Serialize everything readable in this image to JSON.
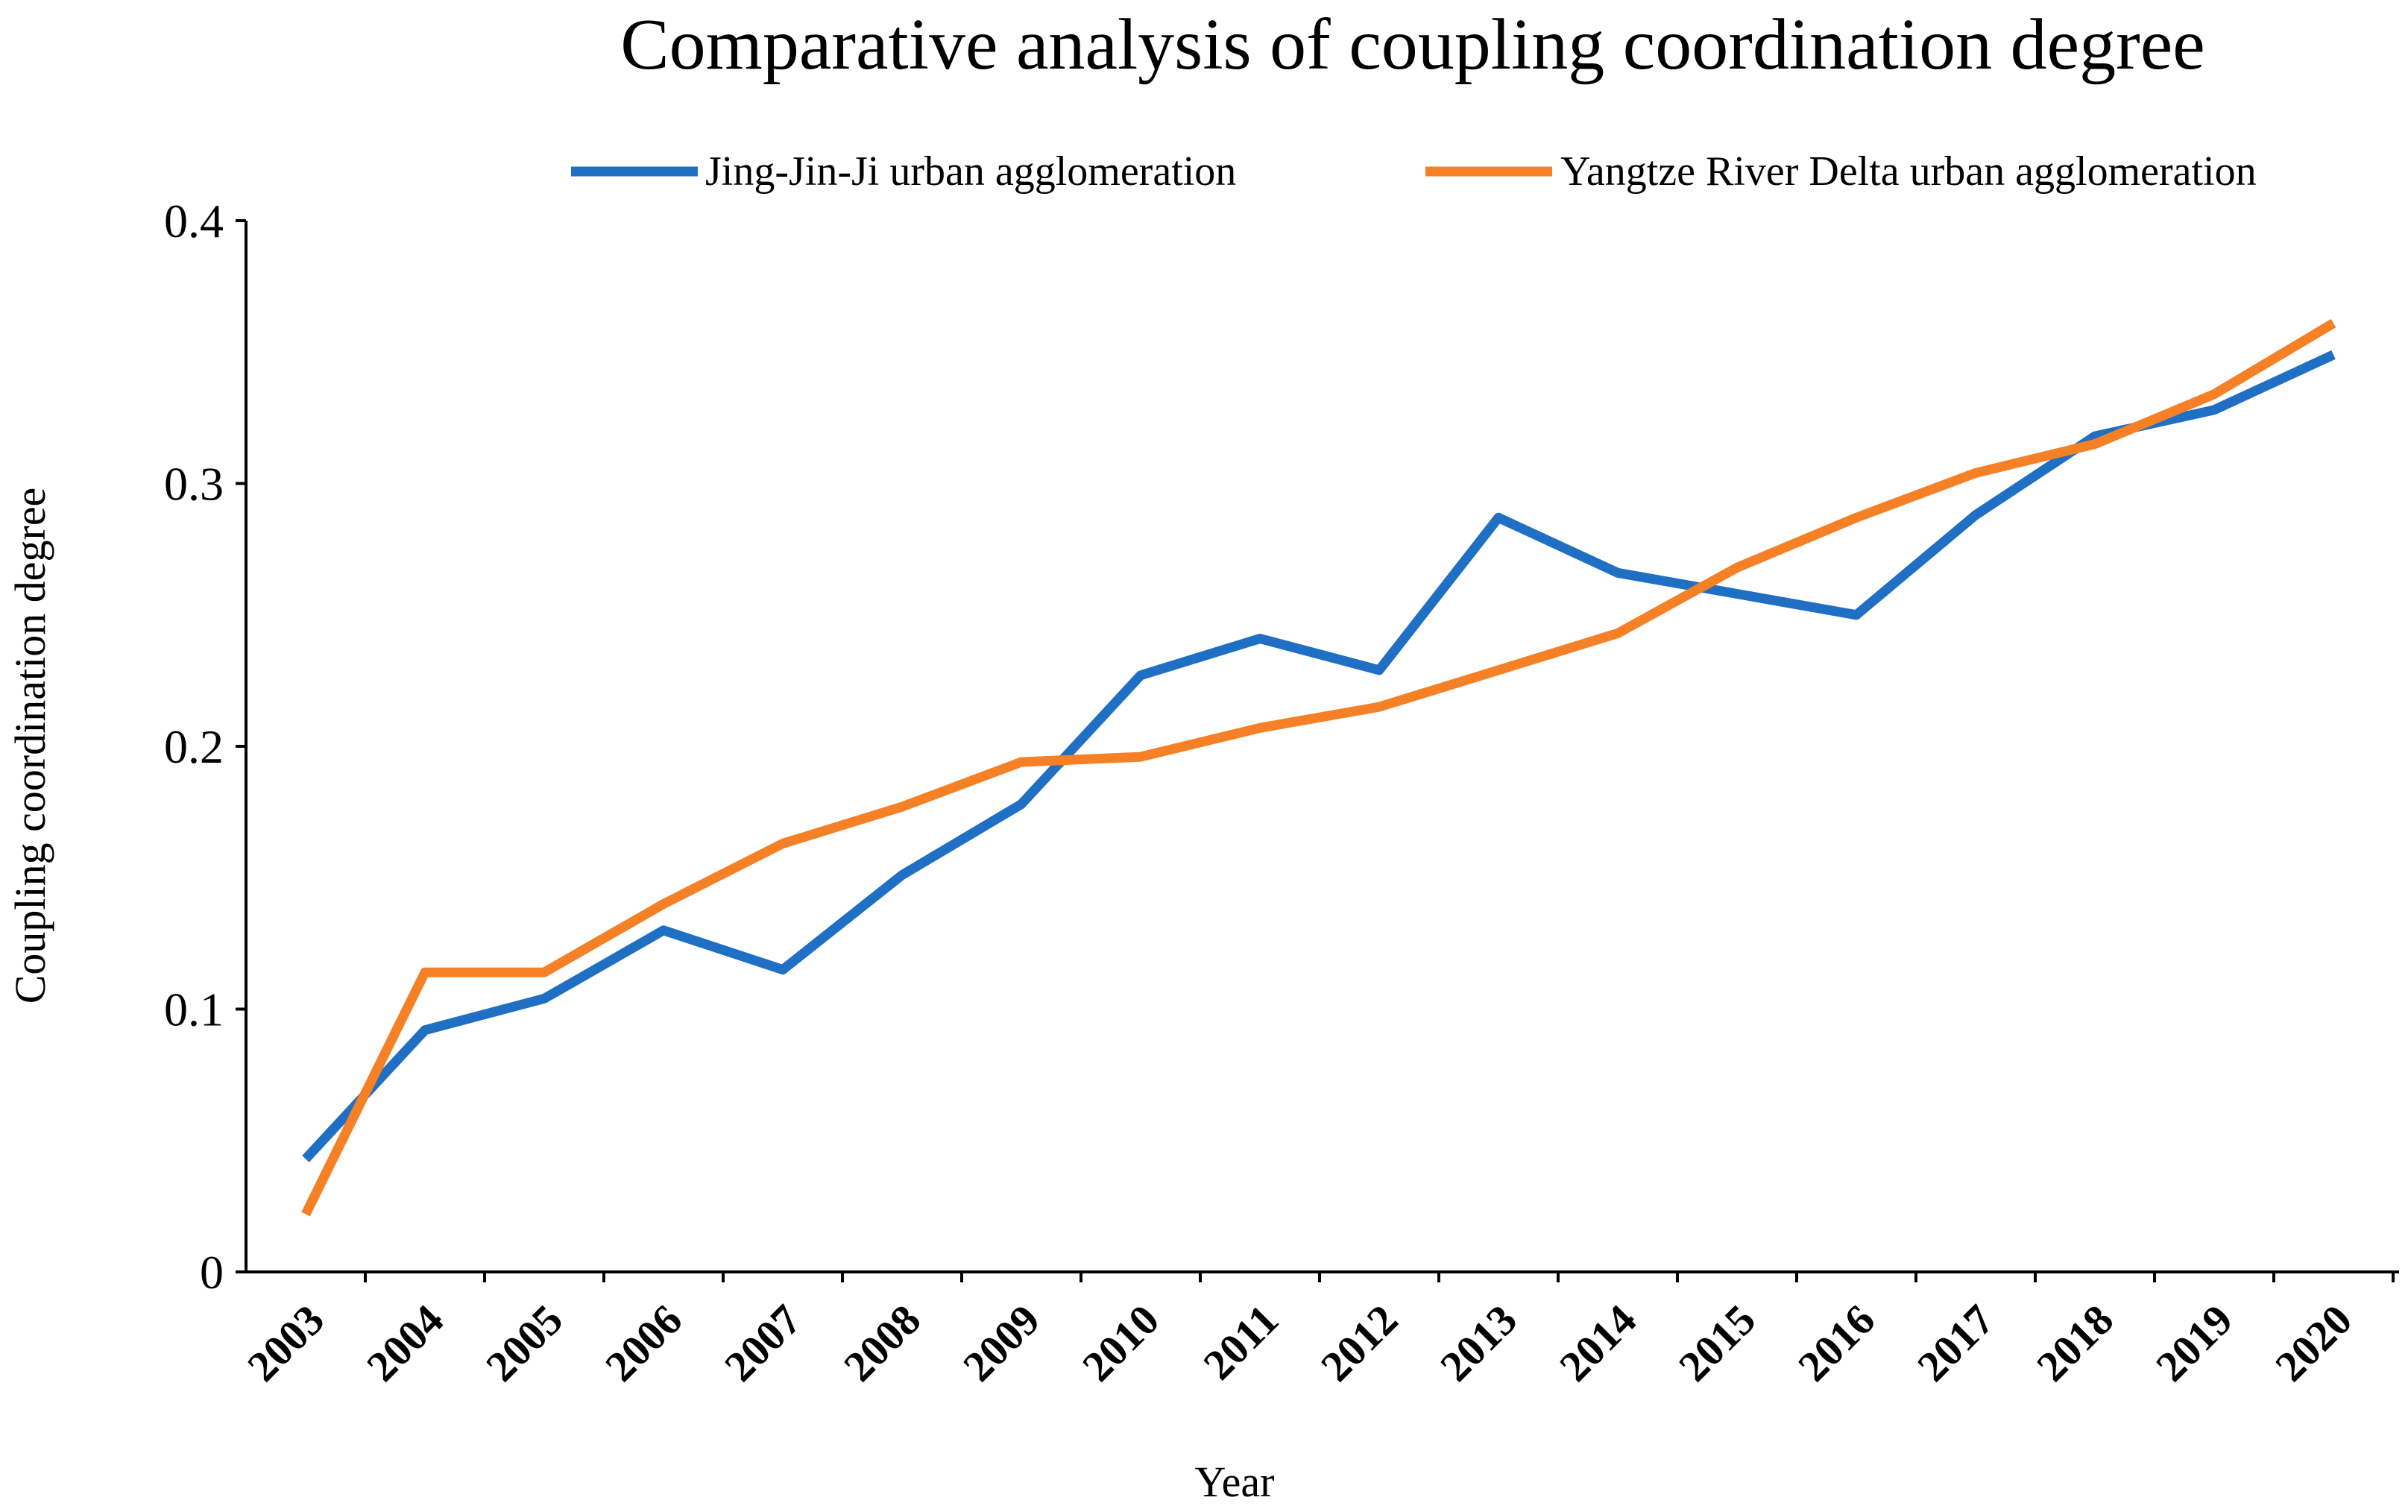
{
  "chart_data": {
    "type": "line",
    "title": "Comparative analysis of coupling coordination degree",
    "xlabel": "Year",
    "ylabel": "Coupling coordination degree",
    "categories": [
      "2003",
      "2004",
      "2005",
      "2006",
      "2007",
      "2008",
      "2009",
      "2010",
      "2011",
      "2012",
      "2013",
      "2014",
      "2015",
      "2016",
      "2017",
      "2018",
      "2019",
      "2020"
    ],
    "ylim": [
      0,
      0.4
    ],
    "yticks": [
      {
        "value": 0,
        "label": "0"
      },
      {
        "value": 0.1,
        "label": "0.1"
      },
      {
        "value": 0.2,
        "label": "0.2"
      },
      {
        "value": 0.3,
        "label": "0.3"
      },
      {
        "value": 0.4,
        "label": "0.4"
      }
    ],
    "grid": false,
    "legend_position": "top",
    "series": [
      {
        "name": "Jing-Jin-Ji urban agglomeration",
        "color": "#1f6fc5",
        "values": [
          0.043,
          0.092,
          0.104,
          0.13,
          0.115,
          0.151,
          0.178,
          0.227,
          0.241,
          0.229,
          0.287,
          0.266,
          0.258,
          0.25,
          0.288,
          0.318,
          0.328,
          0.349
        ]
      },
      {
        "name": "Yangtze River Delta urban agglomeration",
        "color": "#f58025",
        "values": [
          0.022,
          0.114,
          0.114,
          0.14,
          0.163,
          0.177,
          0.194,
          0.196,
          0.207,
          0.215,
          0.229,
          0.243,
          0.268,
          0.287,
          0.304,
          0.315,
          0.334,
          0.361
        ]
      }
    ]
  }
}
